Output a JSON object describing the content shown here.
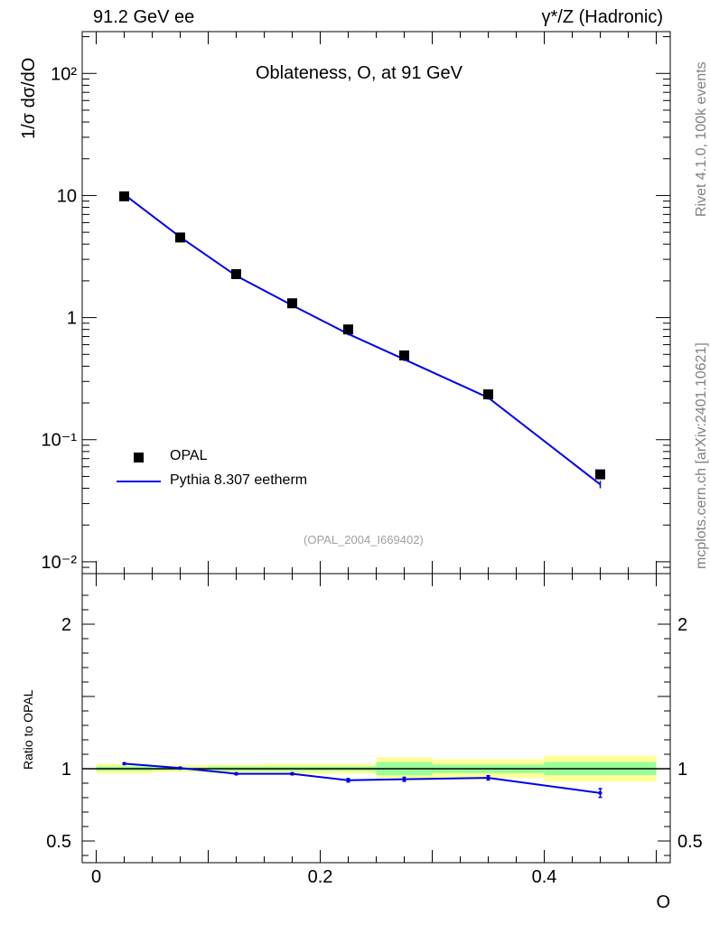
{
  "header": {
    "left": "91.2 GeV ee",
    "right": "γ*/Z (Hadronic)"
  },
  "side_labels": {
    "top": "Rivet 4.1.0,  100k events",
    "bottom": "mcplots.cern.ch [arXiv:2401.10621]"
  },
  "reference": "(OPAL_2004_I669402)",
  "colors": {
    "mc": "#0000ee",
    "band_outer": "#ffff99",
    "band_inner": "#99ff99",
    "data": "#000000"
  },
  "chart_data": [
    {
      "type": "scatter",
      "title": "Oblateness, O, at 91 GeV",
      "ylabel": "1/σ  dσ/dO",
      "xlabel": "O",
      "yscale": "log",
      "ylim": [
        0.008,
        220
      ],
      "xlim": [
        -0.0125,
        0.5125
      ],
      "y_ticks": [
        {
          "value": 0.01,
          "label": "10⁻²"
        },
        {
          "value": 0.1,
          "label": "10⁻¹"
        },
        {
          "value": 1,
          "label": "1"
        },
        {
          "value": 10,
          "label": "10"
        },
        {
          "value": 100,
          "label": "10²"
        }
      ],
      "legend": {
        "position": "bottom-left",
        "entries": [
          "OPAL",
          "Pythia 8.307 eetherm"
        ]
      },
      "series": [
        {
          "name": "OPAL",
          "style": "markers",
          "x": [
            0.025,
            0.075,
            0.125,
            0.175,
            0.225,
            0.275,
            0.35,
            0.45
          ],
          "y": [
            9.85,
            4.53,
            2.27,
            1.31,
            0.8,
            0.49,
            0.235,
            0.052
          ]
        },
        {
          "name": "Pythia 8.307 eetherm",
          "style": "line",
          "x": [
            0.025,
            0.075,
            0.125,
            0.175,
            0.225,
            0.275,
            0.35,
            0.45
          ],
          "y": [
            10.2,
            4.57,
            2.2,
            1.26,
            0.735,
            0.455,
            0.221,
            0.043
          ],
          "yerr_low": [
            0,
            0,
            0,
            0,
            0.02,
            0.015,
            0.008,
            0.003
          ],
          "yerr_high": [
            0,
            0,
            0,
            0,
            0.02,
            0.015,
            0.008,
            0.003
          ]
        }
      ]
    },
    {
      "type": "line",
      "ylabel": "Ratio to OPAL",
      "xlabel": "O",
      "ylim": [
        0.35,
        2.35
      ],
      "xlim": [
        -0.0125,
        0.5125
      ],
      "y_ticks": [
        {
          "value": 0.5,
          "label": "0.5"
        },
        {
          "value": 1,
          "label": "1"
        },
        {
          "value": 2,
          "label": "2"
        }
      ],
      "x_ticks": [
        {
          "value": 0,
          "label": "0"
        },
        {
          "value": 0.2,
          "label": "0.2"
        },
        {
          "value": 0.4,
          "label": "0.4"
        }
      ],
      "bands": {
        "bin_edges": [
          0,
          0.05,
          0.1,
          0.15,
          0.2,
          0.25,
          0.3,
          0.4,
          0.5
        ],
        "outer_low": [
          0.965,
          0.975,
          0.97,
          0.965,
          0.965,
          0.92,
          0.935,
          0.91
        ],
        "outer_high": [
          1.035,
          1.025,
          1.03,
          1.035,
          1.035,
          1.08,
          1.065,
          1.09
        ],
        "inner_low": [
          0.985,
          0.99,
          0.985,
          0.985,
          0.985,
          0.955,
          0.97,
          0.955
        ],
        "inner_high": [
          1.015,
          1.01,
          1.015,
          1.015,
          1.015,
          1.045,
          1.03,
          1.045
        ]
      },
      "series": [
        {
          "name": "Pythia 8.307 eetherm / OPAL",
          "x": [
            0.025,
            0.075,
            0.125,
            0.175,
            0.225,
            0.275,
            0.35,
            0.45
          ],
          "y": [
            1.035,
            1.005,
            0.965,
            0.965,
            0.92,
            0.927,
            0.937,
            0.832
          ],
          "yerr_low": [
            0.005,
            0.005,
            0.006,
            0.007,
            0.012,
            0.014,
            0.015,
            0.03
          ],
          "yerr_high": [
            0.005,
            0.005,
            0.006,
            0.007,
            0.012,
            0.014,
            0.015,
            0.03
          ]
        }
      ]
    }
  ]
}
